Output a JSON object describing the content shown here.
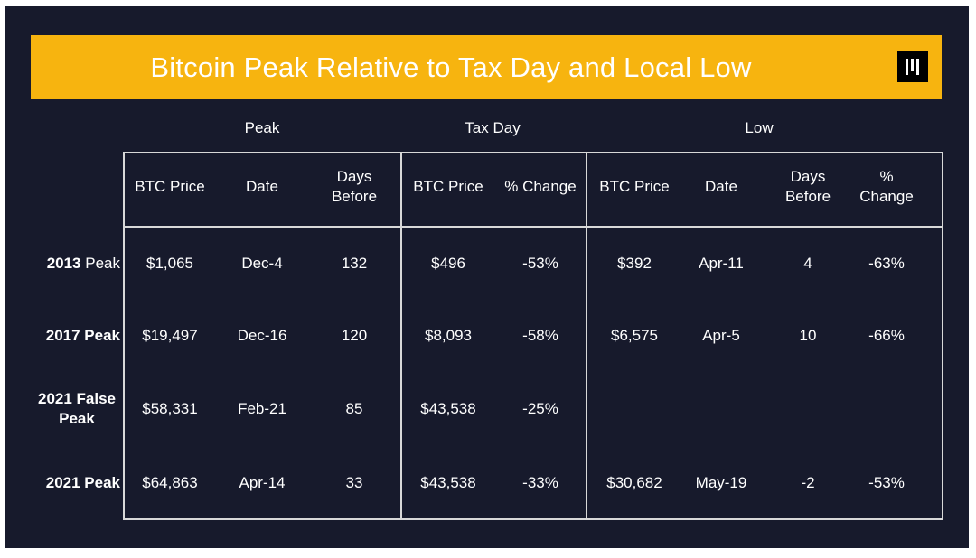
{
  "title": "Bitcoin Peak Relative to Tax Day and Local Low",
  "colors": {
    "background": "#171a2c",
    "banner": "#f7b40f",
    "text": "#ffffff",
    "lines": "#d8d8d8"
  },
  "logo_icon": "pantera-logo-icon",
  "groups": [
    "Peak",
    "Tax Day",
    "Low"
  ],
  "columns": [
    "BTC Price",
    "Date",
    "Days Before",
    "BTC Price",
    "% Change",
    "BTC Price",
    "Date",
    "Days Before",
    "% Change"
  ],
  "rows": [
    {
      "year": "2013",
      "label_rest": "Peak",
      "cells": [
        "$1,065",
        "Dec-4",
        "132",
        "$496",
        "-53%",
        "$392",
        "Apr-11",
        "4",
        "-63%"
      ]
    },
    {
      "year": "2017 Peak",
      "label_rest": "",
      "cells": [
        "$19,497",
        "Dec-16",
        "120",
        "$8,093",
        "-58%",
        "$6,575",
        "Apr-5",
        "10",
        "-66%"
      ]
    },
    {
      "year": "2021 False Peak",
      "label_rest": "",
      "cells": [
        "$58,331",
        "Feb-21",
        "85",
        "$43,538",
        "-25%",
        "",
        "",
        "",
        ""
      ]
    },
    {
      "year": "2021 Peak",
      "label_rest": "",
      "cells": [
        "$64,863",
        "Apr-14",
        "33",
        "$43,538",
        "-33%",
        "$30,682",
        "May-19",
        "-2",
        "-53%"
      ]
    }
  ],
  "chart_data": {
    "type": "table",
    "title": "Bitcoin Peak Relative to Tax Day and Local Low",
    "column_groups": [
      {
        "name": "Peak",
        "columns": [
          "BTC Price",
          "Date",
          "Days Before"
        ]
      },
      {
        "name": "Tax Day",
        "columns": [
          "BTC Price",
          "% Change"
        ]
      },
      {
        "name": "Low",
        "columns": [
          "BTC Price",
          "Date",
          "Days Before",
          "% Change"
        ]
      }
    ],
    "row_labels": [
      "2013 Peak",
      "2017 Peak",
      "2021 False Peak",
      "2021 Peak"
    ],
    "values": [
      [
        "$1,065",
        "Dec-4",
        "132",
        "$496",
        "-53%",
        "$392",
        "Apr-11",
        "4",
        "-63%"
      ],
      [
        "$19,497",
        "Dec-16",
        "120",
        "$8,093",
        "-58%",
        "$6,575",
        "Apr-5",
        "10",
        "-66%"
      ],
      [
        "$58,331",
        "Feb-21",
        "85",
        "$43,538",
        "-25%",
        "",
        "",
        "",
        ""
      ],
      [
        "$64,863",
        "Apr-14",
        "33",
        "$43,538",
        "-33%",
        "$30,682",
        "May-19",
        "-2",
        "-53%"
      ]
    ]
  }
}
